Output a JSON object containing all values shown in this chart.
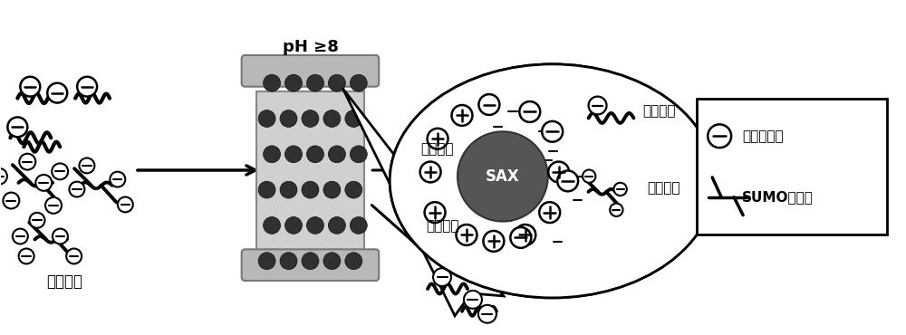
{
  "bg_color": "#ffffff",
  "bead_color": "#404040",
  "sax_color": "#555555",
  "text_color": "#000000",
  "label_enzyme": "酶解肽段",
  "label_ph": "pH ≥8",
  "label_sax": "SAX",
  "label_retain_weak": "保留较弱",
  "label_retain_strong": "保留较强",
  "label_high_salt": "高盐洗脱",
  "label_low_salt": "低盐去除",
  "legend_acid": "酸性氨基酸",
  "legend_sumo": "SUMO化肽段",
  "fig_width": 10.0,
  "fig_height": 3.7
}
